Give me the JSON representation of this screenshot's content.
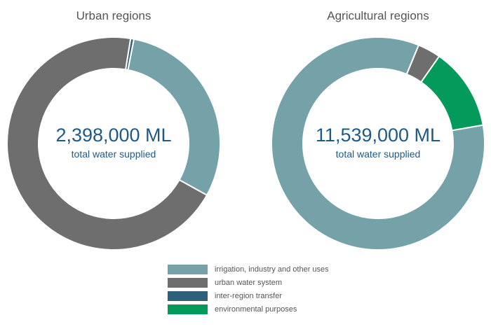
{
  "chart_data": [
    {
      "type": "donut",
      "title": "Urban regions",
      "center_value": "2,398,000 ML",
      "center_label": "total water supplied",
      "unit": "share of total water supplied",
      "slices": [
        {
          "category": "urban water system",
          "value": 0.695
        },
        {
          "category": "inter-region transfer",
          "value": 0.005
        },
        {
          "category": "irrigation, industry and other uses",
          "value": 0.3
        },
        {
          "category": "environmental purposes",
          "value": 0.0
        }
      ]
    },
    {
      "type": "donut",
      "title": "Agricultural regions",
      "center_value": "11,539,000 ML",
      "center_label": "total water supplied",
      "unit": "share of total water supplied",
      "slices": [
        {
          "category": "irrigation, industry and other uses",
          "value": 0.84
        },
        {
          "category": "urban water system",
          "value": 0.035
        },
        {
          "category": "environmental purposes",
          "value": 0.125
        },
        {
          "category": "inter-region transfer",
          "value": 0.0
        }
      ]
    }
  ],
  "legend": [
    {
      "label": "irrigation, industry and other uses",
      "color": "#74a2a8"
    },
    {
      "label": "urban water system",
      "color": "#6e6e6e"
    },
    {
      "label": "inter-region transfer",
      "color": "#2f6079"
    },
    {
      "label": "environmental purposes",
      "color": "#039a5b"
    }
  ],
  "colors": {
    "irrigation, industry and other uses": "#74a2a8",
    "urban water system": "#6e6e6e",
    "inter-region transfer": "#2f6079",
    "environmental purposes": "#039a5b"
  }
}
